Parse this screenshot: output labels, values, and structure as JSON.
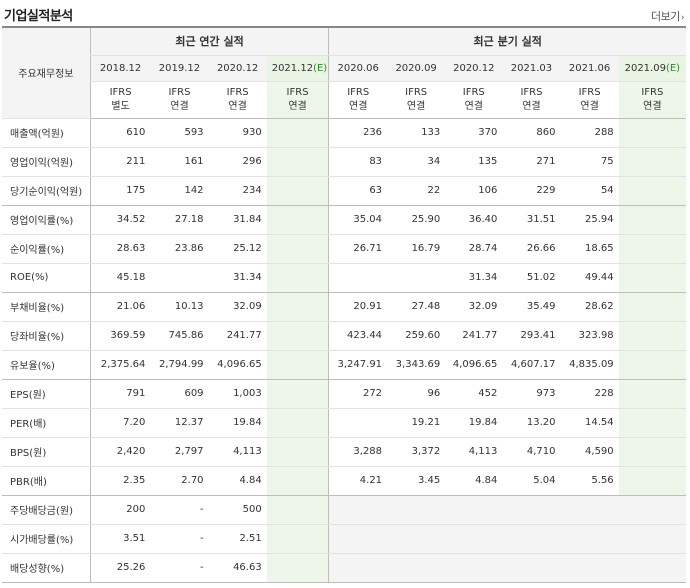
{
  "section_title": "기업실적분석",
  "more_label": "더보기",
  "more_chevron": "›",
  "row_header_label": "주요재무정보",
  "annual_header": "최근 연간 실적",
  "quarter_header": "최근 분기 실적",
  "annual_dates": [
    "2018.12",
    "2019.12",
    "2020.12",
    "2021.12(E)"
  ],
  "quarter_dates": [
    "2020.06",
    "2020.09",
    "2020.12",
    "2021.03",
    "2021.06",
    "2021.09(E)"
  ],
  "annual_types": [
    [
      "IFRS",
      "별도"
    ],
    [
      "IFRS",
      "연결"
    ],
    [
      "IFRS",
      "연결"
    ],
    [
      "IFRS",
      "연결"
    ]
  ],
  "quarter_types": [
    [
      "IFRS",
      "연결"
    ],
    [
      "IFRS",
      "연결"
    ],
    [
      "IFRS",
      "연결"
    ],
    [
      "IFRS",
      "연결"
    ],
    [
      "IFRS",
      "연결"
    ],
    [
      "IFRS",
      "연결"
    ]
  ],
  "colors": {
    "ifrs_text": "#e8541e",
    "estimate_bg": "#eef6ea",
    "header_bg": "#f4f4f4"
  },
  "rows": [
    {
      "label": "매출액(억원)",
      "annual": [
        "610",
        "593",
        "930",
        ""
      ],
      "quarter": [
        "236",
        "133",
        "370",
        "860",
        "288",
        ""
      ],
      "group_end": false
    },
    {
      "label": "영업이익(억원)",
      "annual": [
        "211",
        "161",
        "296",
        ""
      ],
      "quarter": [
        "83",
        "34",
        "135",
        "271",
        "75",
        ""
      ],
      "group_end": false
    },
    {
      "label": "당기순이익(억원)",
      "annual": [
        "175",
        "142",
        "234",
        ""
      ],
      "quarter": [
        "63",
        "22",
        "106",
        "229",
        "54",
        ""
      ],
      "group_end": true
    },
    {
      "label": "영업이익률(%)",
      "annual": [
        "34.52",
        "27.18",
        "31.84",
        ""
      ],
      "quarter": [
        "35.04",
        "25.90",
        "36.40",
        "31.51",
        "25.94",
        ""
      ],
      "group_end": false
    },
    {
      "label": "순이익률(%)",
      "annual": [
        "28.63",
        "23.86",
        "25.12",
        ""
      ],
      "quarter": [
        "26.71",
        "16.79",
        "28.74",
        "26.66",
        "18.65",
        ""
      ],
      "group_end": false
    },
    {
      "label": "ROE(%)",
      "annual": [
        "45.18",
        "",
        "31.34",
        ""
      ],
      "quarter": [
        "",
        "",
        "31.34",
        "51.02",
        "49.44",
        ""
      ],
      "group_end": true
    },
    {
      "label": "부채비율(%)",
      "annual": [
        "21.06",
        "10.13",
        "32.09",
        ""
      ],
      "quarter": [
        "20.91",
        "27.48",
        "32.09",
        "35.49",
        "28.62",
        ""
      ],
      "group_end": false
    },
    {
      "label": "당좌비율(%)",
      "annual": [
        "369.59",
        "745.86",
        "241.77",
        ""
      ],
      "quarter": [
        "423.44",
        "259.60",
        "241.77",
        "293.41",
        "323.98",
        ""
      ],
      "group_end": false
    },
    {
      "label": "유보율(%)",
      "annual": [
        "2,375.64",
        "2,794.99",
        "4,096.65",
        ""
      ],
      "quarter": [
        "3,247.91",
        "3,343.69",
        "4,096.65",
        "4,607.17",
        "4,835.09",
        ""
      ],
      "group_end": true
    },
    {
      "label": "EPS(원)",
      "annual": [
        "791",
        "609",
        "1,003",
        ""
      ],
      "quarter": [
        "272",
        "96",
        "452",
        "973",
        "228",
        ""
      ],
      "group_end": false
    },
    {
      "label": "PER(배)",
      "annual": [
        "7.20",
        "12.37",
        "19.84",
        ""
      ],
      "quarter": [
        "",
        "19.21",
        "19.84",
        "13.20",
        "14.54",
        ""
      ],
      "group_end": false
    },
    {
      "label": "BPS(원)",
      "annual": [
        "2,420",
        "2,797",
        "4,113",
        ""
      ],
      "quarter": [
        "3,288",
        "3,372",
        "4,113",
        "4,710",
        "4,590",
        ""
      ],
      "group_end": false
    },
    {
      "label": "PBR(배)",
      "annual": [
        "2.35",
        "2.70",
        "4.84",
        ""
      ],
      "quarter": [
        "4.21",
        "3.45",
        "4.84",
        "5.04",
        "5.56",
        ""
      ],
      "group_end": true
    },
    {
      "label": "주당배당금(원)",
      "annual": [
        "200",
        "-",
        "500",
        ""
      ],
      "quarter": [
        "",
        "",
        "",
        "",
        "",
        ""
      ],
      "group_end": false,
      "quarter_gray": true
    },
    {
      "label": "시가배당률(%)",
      "annual": [
        "3.51",
        "-",
        "2.51",
        ""
      ],
      "quarter": [
        "",
        "",
        "",
        "",
        "",
        ""
      ],
      "group_end": false,
      "quarter_gray": true
    },
    {
      "label": "배당성향(%)",
      "annual": [
        "25.26",
        "-",
        "46.63",
        ""
      ],
      "quarter": [
        "",
        "",
        "",
        "",
        "",
        ""
      ],
      "group_end": true,
      "quarter_gray": true
    }
  ]
}
